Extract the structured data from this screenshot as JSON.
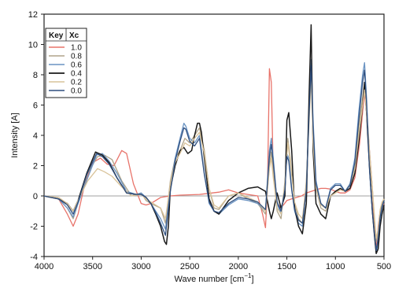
{
  "chart_data": {
    "type": "line",
    "xlabel": "Wave number [cm",
    "xlabel_sup": "−1",
    "xlabel_close": "]",
    "ylabel": "Intensity [A]",
    "xlim": [
      4000,
      500
    ],
    "ylim": [
      -4,
      12
    ],
    "xticks": [
      4000,
      3500,
      3000,
      2500,
      2000,
      1500,
      1000,
      500
    ],
    "yticks": [
      -4,
      -2,
      0,
      2,
      4,
      6,
      8,
      10,
      12
    ],
    "legend": {
      "placement": "top-left",
      "header_key": "Key",
      "header_xc": "Xc",
      "entries": [
        "1.0",
        "0.8",
        "0.6",
        "0.4",
        "0.2",
        "0.0"
      ]
    },
    "series": [
      {
        "color": "#e8736a",
        "x": [
          4000,
          3850,
          3760,
          3700,
          3650,
          3580,
          3500,
          3420,
          3350,
          3280,
          3200,
          3150,
          3080,
          3000,
          2950,
          2900,
          2850,
          2800,
          2700,
          2600,
          2400,
          2200,
          2100,
          2000,
          1900,
          1800,
          1750,
          1720,
          1700,
          1680,
          1660,
          1640,
          1600,
          1560,
          1500,
          1450,
          1400,
          1350,
          1300,
          1250,
          1200,
          1150,
          1100,
          1050,
          1000,
          950,
          900,
          850,
          800,
          750,
          720,
          700,
          680,
          650,
          620,
          600,
          580,
          560,
          540,
          520,
          500
        ],
        "y": [
          0,
          -0.2,
          -1.2,
          -2.0,
          -1.2,
          0.8,
          2.2,
          2.5,
          2.1,
          2.0,
          3.0,
          2.8,
          0.8,
          -0.5,
          -0.6,
          -0.5,
          -0.3,
          -0.1,
          0,
          0.05,
          0.1,
          0.25,
          0.4,
          0.2,
          0.1,
          0,
          -1.2,
          -2.1,
          0.5,
          8.4,
          7.5,
          1.5,
          -0.5,
          -0.8,
          -0.3,
          -0.2,
          -0.1,
          0,
          0.2,
          0.3,
          0.4,
          0.5,
          0.5,
          0.45,
          0.3,
          0.2,
          0.2,
          0.4,
          1.2,
          3.5,
          5.5,
          6.8,
          5.5,
          3.0,
          0.5,
          -2.2,
          -3.5,
          -2.0,
          -1.0,
          -0.8,
          -0.5
        ]
      },
      {
        "color": "#b0a48a",
        "x": [
          4000,
          3850,
          3760,
          3700,
          3650,
          3550,
          3450,
          3380,
          3300,
          3200,
          3100,
          3000,
          2950,
          2900,
          2800,
          2750,
          2700,
          2650,
          2600,
          2550,
          2500,
          2450,
          2400,
          2350,
          2300,
          2250,
          2200,
          2100,
          2000,
          1900,
          1800,
          1720,
          1680,
          1660,
          1640,
          1600,
          1560,
          1520,
          1490,
          1460,
          1420,
          1380,
          1340,
          1300,
          1270,
          1250,
          1230,
          1200,
          1150,
          1100,
          1050,
          1000,
          950,
          900,
          850,
          800,
          760,
          720,
          700,
          680,
          650,
          620,
          600,
          580,
          560,
          540,
          520,
          500
        ],
        "y": [
          0,
          -0.2,
          -0.8,
          -1.5,
          -0.5,
          1.5,
          2.6,
          2.7,
          2.4,
          1.0,
          0,
          0.2,
          -0.3,
          -0.5,
          -0.8,
          -1.8,
          1.0,
          2.5,
          3.0,
          3.8,
          3.5,
          4.0,
          4.5,
          3.0,
          0.5,
          -0.8,
          -0.9,
          0,
          0.2,
          -0.2,
          -0.5,
          -1.2,
          2.0,
          2.9,
          1.5,
          -1.0,
          -1.5,
          1.0,
          3.8,
          2.2,
          -0.5,
          -1.5,
          -1.8,
          1.0,
          5.5,
          8.5,
          4.0,
          0.5,
          -0.8,
          -1.0,
          0,
          0.2,
          0.5,
          0.3,
          0.8,
          2.0,
          4.5,
          6.5,
          7.5,
          6.0,
          3.0,
          0.5,
          -1.5,
          -3.0,
          -2.5,
          -1.0,
          -0.5,
          -0.2
        ]
      },
      {
        "color": "#6a93c2",
        "x": [
          4000,
          3850,
          3760,
          3700,
          3650,
          3550,
          3460,
          3400,
          3330,
          3250,
          3150,
          3050,
          3000,
          2950,
          2900,
          2850,
          2800,
          2750,
          2700,
          2650,
          2600,
          2560,
          2540,
          2500,
          2450,
          2400,
          2350,
          2300,
          2250,
          2200,
          2100,
          2000,
          1900,
          1800,
          1720,
          1680,
          1660,
          1640,
          1600,
          1560,
          1520,
          1500,
          1480,
          1450,
          1420,
          1380,
          1340,
          1300,
          1270,
          1250,
          1230,
          1200,
          1150,
          1100,
          1050,
          1000,
          950,
          900,
          850,
          800,
          760,
          720,
          700,
          680,
          650,
          620,
          600,
          580,
          560,
          540,
          520,
          500
        ],
        "y": [
          0,
          -0.2,
          -0.8,
          -1.4,
          -0.5,
          1.2,
          2.7,
          2.8,
          2.3,
          1.5,
          0.3,
          0.1,
          0.2,
          -0.1,
          -0.5,
          -1.0,
          -1.5,
          -2.2,
          0.5,
          2.5,
          3.8,
          4.8,
          4.6,
          3.8,
          3.5,
          4.0,
          1.5,
          -0.5,
          -1.0,
          -1.2,
          -0.6,
          -0.2,
          -0.3,
          -0.5,
          -1.0,
          3.0,
          3.8,
          2.5,
          -0.5,
          -1.2,
          0.5,
          2.8,
          2.5,
          0.5,
          -1.0,
          -1.8,
          -2.0,
          0.5,
          6.0,
          9.0,
          5.0,
          1.0,
          -0.5,
          -0.8,
          0.5,
          0.8,
          0.8,
          0.3,
          0.8,
          2.5,
          5.5,
          8.0,
          8.8,
          6.5,
          2.0,
          -1.0,
          -2.5,
          -3.8,
          -3.0,
          -1.5,
          -0.8,
          -0.3
        ]
      },
      {
        "color": "#1a1a1a",
        "x": [
          4000,
          3850,
          3760,
          3700,
          3650,
          3560,
          3470,
          3400,
          3330,
          3250,
          3150,
          3050,
          3000,
          2950,
          2900,
          2850,
          2800,
          2760,
          2740,
          2720,
          2700,
          2650,
          2600,
          2560,
          2520,
          2480,
          2450,
          2420,
          2400,
          2380,
          2350,
          2300,
          2250,
          2200,
          2100,
          2000,
          1900,
          1800,
          1720,
          1680,
          1660,
          1640,
          1600,
          1560,
          1520,
          1500,
          1480,
          1450,
          1420,
          1380,
          1340,
          1300,
          1270,
          1250,
          1230,
          1200,
          1150,
          1100,
          1050,
          1000,
          950,
          900,
          850,
          800,
          760,
          720,
          700,
          680,
          650,
          620,
          600,
          580,
          560,
          540,
          520,
          500
        ],
        "y": [
          0,
          -0.2,
          -0.5,
          -1.0,
          -0.3,
          1.5,
          2.9,
          2.7,
          2.2,
          1.2,
          0.2,
          0.1,
          0.1,
          -0.1,
          -0.5,
          -1.2,
          -2.0,
          -3.0,
          -3.2,
          -2.0,
          0.5,
          2.0,
          3.0,
          3.2,
          2.8,
          3.0,
          4.0,
          4.8,
          4.8,
          4.2,
          2.5,
          -0.2,
          -1.0,
          -1.2,
          -0.3,
          0.2,
          0.5,
          0.6,
          0.3,
          -1.0,
          -1.5,
          -1.0,
          0.2,
          -0.8,
          0,
          5.0,
          5.5,
          3.0,
          -0.8,
          -2.0,
          -2.5,
          -0.5,
          7.0,
          11.3,
          3.0,
          -0.5,
          -1.2,
          -1.5,
          0,
          0.3,
          0.5,
          0.3,
          0.5,
          1.5,
          3.5,
          6.0,
          7.5,
          5.5,
          2.0,
          -1.0,
          -2.5,
          -3.8,
          -3.5,
          -2.0,
          -1.2,
          -0.6
        ]
      },
      {
        "color": "#d9c39a",
        "x": [
          4000,
          3850,
          3760,
          3700,
          3650,
          3550,
          3450,
          3380,
          3300,
          3200,
          3100,
          3000,
          2950,
          2900,
          2850,
          2800,
          2750,
          2700,
          2650,
          2600,
          2550,
          2500,
          2450,
          2400,
          2350,
          2300,
          2250,
          2200,
          2100,
          2000,
          1900,
          1800,
          1720,
          1680,
          1660,
          1640,
          1600,
          1560,
          1520,
          1490,
          1460,
          1420,
          1380,
          1340,
          1300,
          1270,
          1250,
          1230,
          1200,
          1150,
          1100,
          1050,
          1000,
          950,
          900,
          850,
          800,
          760,
          720,
          700,
          680,
          650,
          620,
          600,
          580,
          560,
          540,
          520,
          500
        ],
        "y": [
          0,
          -0.1,
          -0.5,
          -1.0,
          -0.3,
          1.0,
          1.8,
          1.6,
          1.3,
          0.6,
          0,
          0.1,
          -0.2,
          -0.4,
          -0.6,
          -0.8,
          -1.5,
          0.8,
          2.2,
          2.8,
          3.5,
          3.3,
          3.8,
          4.2,
          2.8,
          0.5,
          -0.6,
          -0.8,
          0,
          0.2,
          -0.1,
          -0.4,
          -1.0,
          1.8,
          2.5,
          1.2,
          -0.8,
          -1.2,
          0.8,
          3.5,
          2.0,
          -0.4,
          -1.2,
          -1.5,
          0.8,
          5.0,
          7.8,
          3.5,
          0.5,
          -0.6,
          -0.8,
          0,
          0.2,
          0.4,
          0.3,
          0.7,
          1.8,
          4.0,
          6.0,
          7.0,
          5.5,
          2.8,
          0.5,
          -1.2,
          -2.8,
          -2.2,
          -0.9,
          -0.4,
          -0.2
        ]
      },
      {
        "color": "#2f4f7f",
        "x": [
          4000,
          3850,
          3760,
          3700,
          3650,
          3560,
          3460,
          3400,
          3330,
          3250,
          3150,
          3050,
          3000,
          2950,
          2900,
          2850,
          2800,
          2750,
          2700,
          2650,
          2600,
          2560,
          2540,
          2500,
          2450,
          2400,
          2350,
          2300,
          2250,
          2200,
          2100,
          2000,
          1900,
          1800,
          1720,
          1680,
          1660,
          1640,
          1600,
          1560,
          1520,
          1500,
          1480,
          1450,
          1420,
          1380,
          1340,
          1300,
          1270,
          1250,
          1230,
          1200,
          1150,
          1100,
          1050,
          1000,
          950,
          900,
          850,
          800,
          760,
          720,
          700,
          680,
          650,
          620,
          600,
          580,
          560,
          540,
          520,
          500
        ],
        "y": [
          0,
          -0.2,
          -0.6,
          -1.2,
          -0.4,
          1.4,
          2.8,
          2.6,
          2.1,
          1.2,
          0.2,
          0.1,
          0.1,
          -0.1,
          -0.5,
          -1.1,
          -1.8,
          -2.6,
          0.3,
          2.3,
          3.6,
          4.5,
          4.4,
          3.6,
          3.3,
          3.8,
          1.4,
          -0.4,
          -1.0,
          -1.1,
          -0.5,
          -0.1,
          -0.2,
          -0.4,
          -0.9,
          2.6,
          3.4,
          2.2,
          -0.4,
          -1.0,
          0.4,
          2.6,
          2.3,
          0.4,
          -0.9,
          -1.6,
          -1.8,
          0.4,
          5.6,
          8.6,
          4.6,
          0.8,
          -0.5,
          -0.8,
          0.4,
          0.7,
          0.7,
          0.3,
          0.7,
          2.2,
          5.0,
          7.5,
          8.3,
          6.2,
          1.8,
          -1.0,
          -2.4,
          -3.6,
          -2.8,
          -1.4,
          -0.7,
          -0.3
        ]
      }
    ]
  }
}
